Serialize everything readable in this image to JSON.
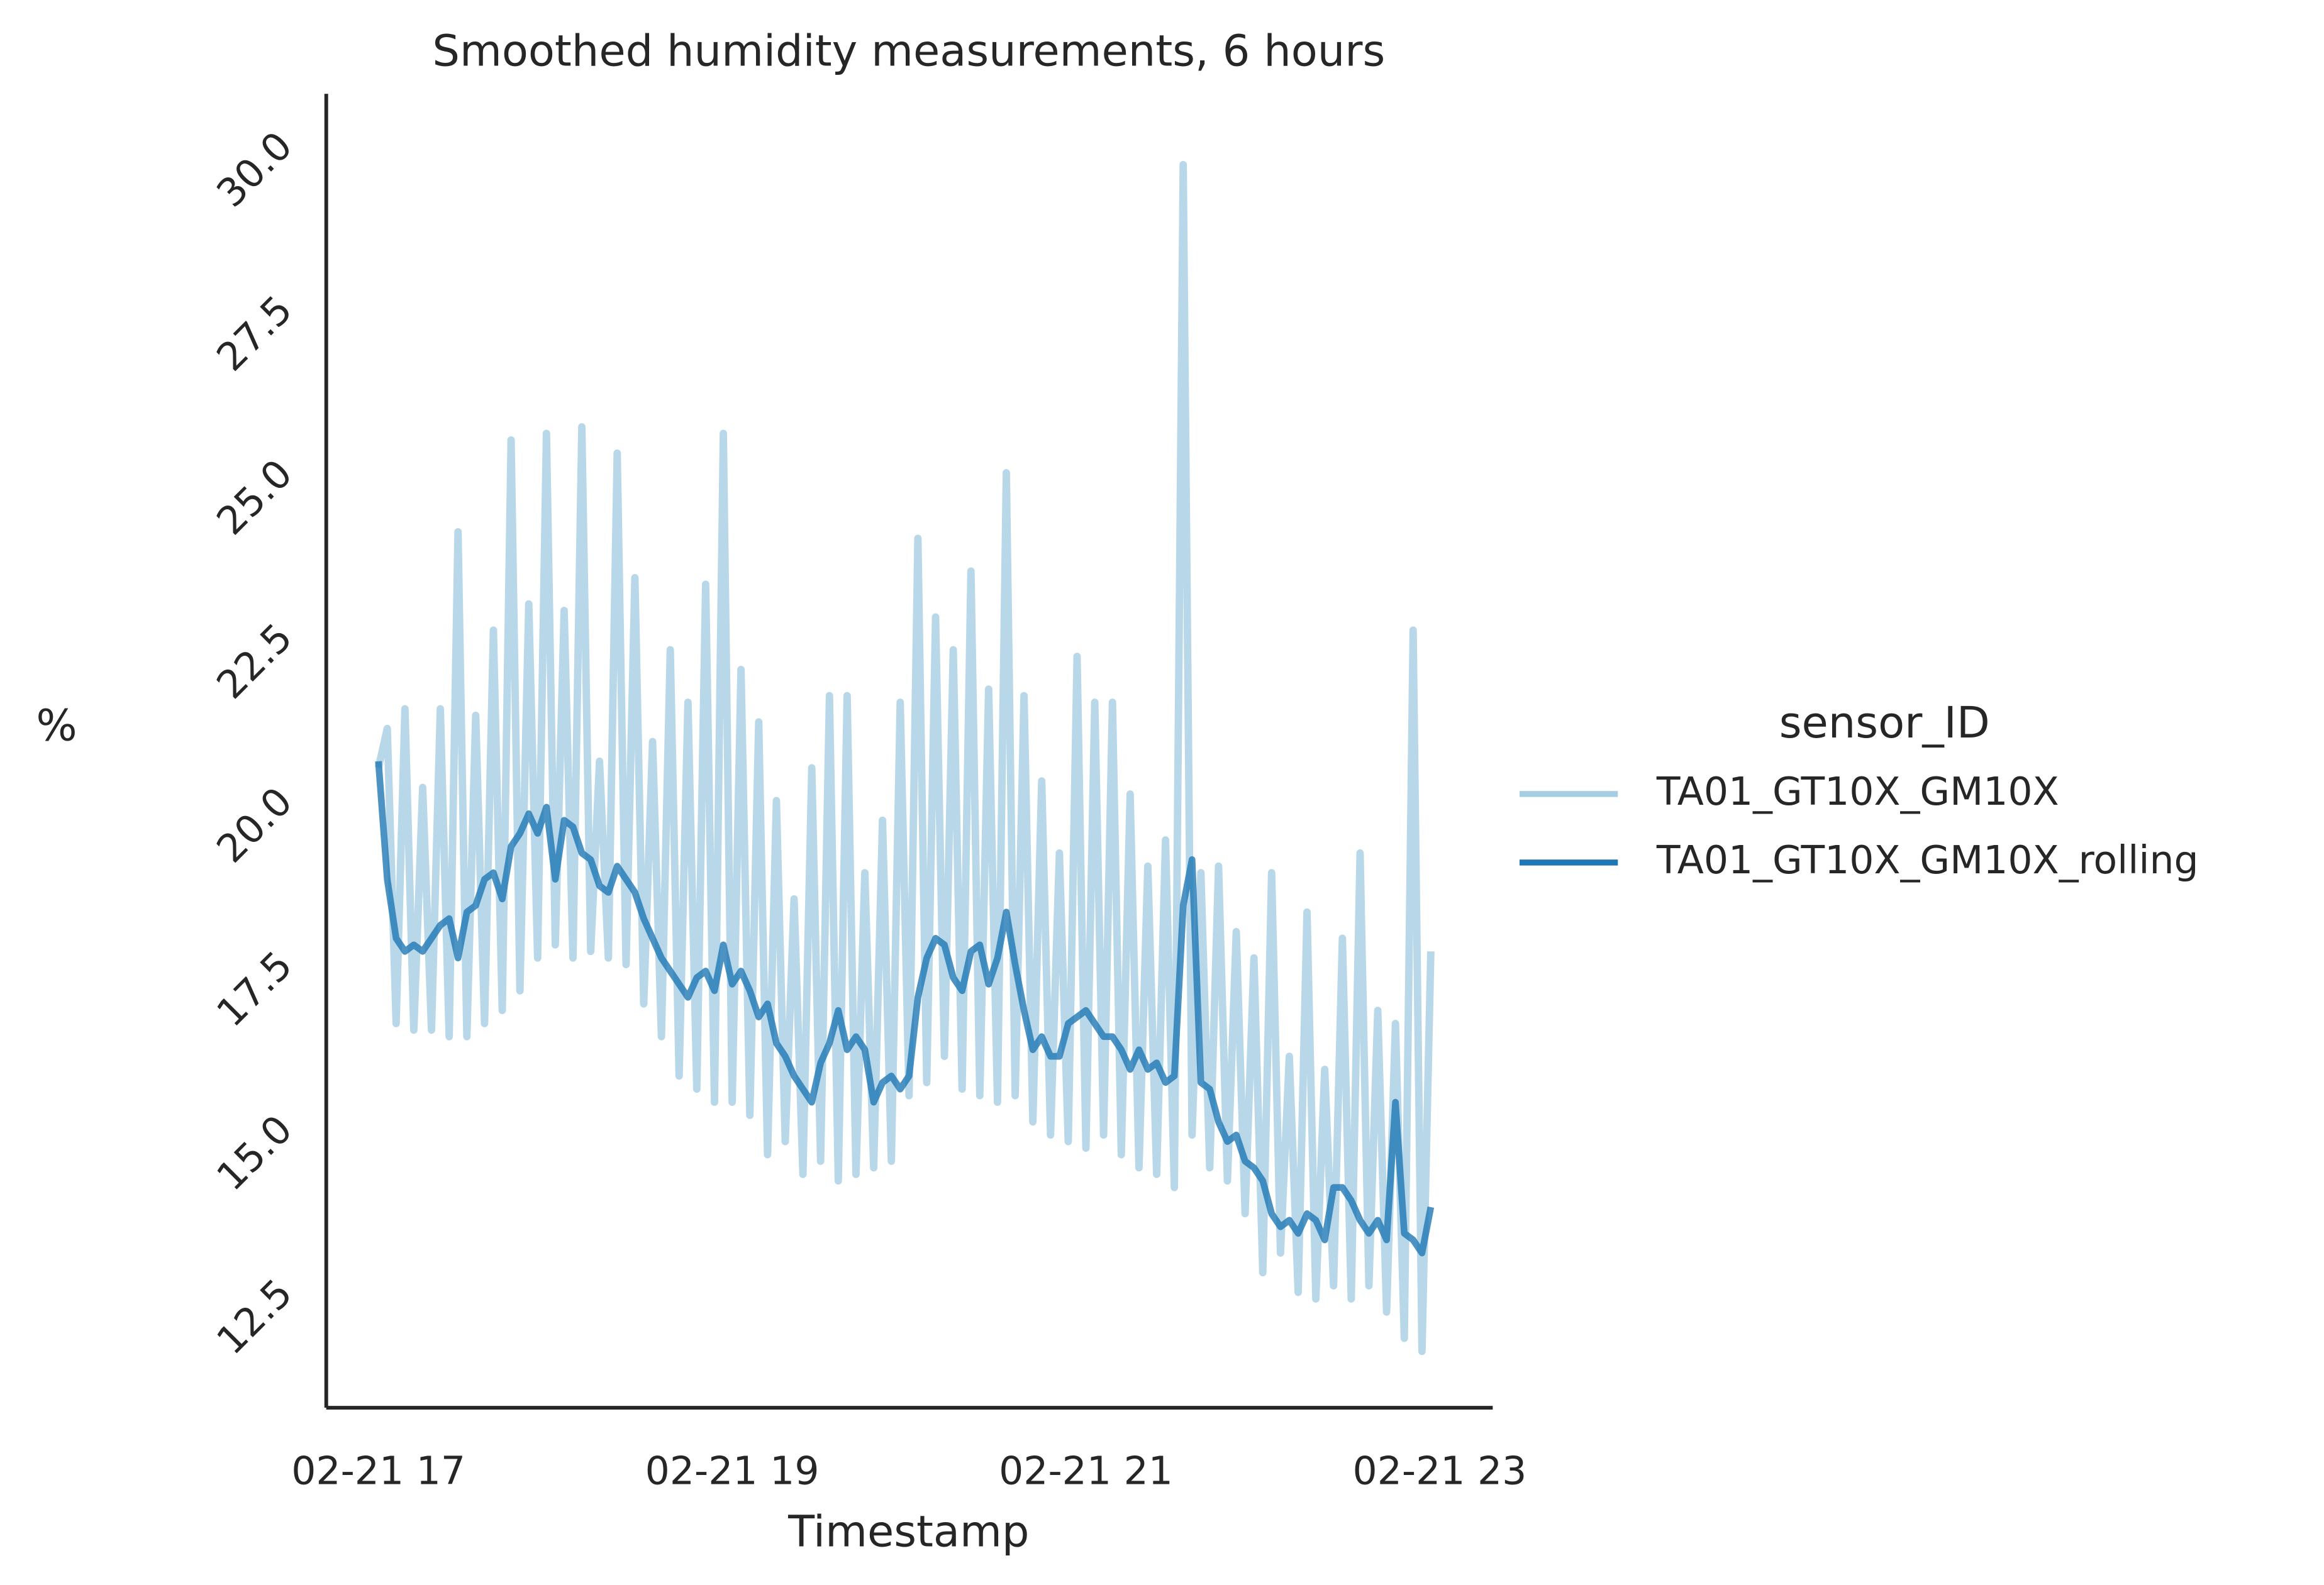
{
  "chart_data": {
    "type": "line",
    "title": "Smoothed humidity measurements, 6 hours",
    "x_label": "Timestamp",
    "y_label": "%",
    "legend_title": "sensor_ID",
    "legend_position": "right",
    "grid": false,
    "x": [
      17.0,
      17.05,
      17.1,
      17.15,
      17.2,
      17.25,
      17.3,
      17.35,
      17.4,
      17.45,
      17.5,
      17.55,
      17.6,
      17.65,
      17.7,
      17.75,
      17.8,
      17.85,
      17.9,
      17.95,
      18.0,
      18.05,
      18.1,
      18.15,
      18.2,
      18.25,
      18.3,
      18.35,
      18.4,
      18.45,
      18.5,
      18.55,
      18.6,
      18.65,
      18.7,
      18.75,
      18.8,
      18.85,
      18.9,
      18.95,
      19.0,
      19.05,
      19.1,
      19.15,
      19.2,
      19.25,
      19.3,
      19.35,
      19.4,
      19.45,
      19.5,
      19.55,
      19.6,
      19.65,
      19.7,
      19.75,
      19.8,
      19.85,
      19.9,
      19.95,
      20.0,
      20.05,
      20.1,
      20.15,
      20.2,
      20.25,
      20.3,
      20.35,
      20.4,
      20.45,
      20.5,
      20.55,
      20.6,
      20.65,
      20.7,
      20.75,
      20.8,
      20.85,
      20.9,
      20.95,
      21.0,
      21.05,
      21.1,
      21.15,
      21.2,
      21.25,
      21.3,
      21.35,
      21.4,
      21.45,
      21.5,
      21.55,
      21.6,
      21.65,
      21.7,
      21.75,
      21.8,
      21.85,
      21.9,
      21.95,
      22.0,
      22.05,
      22.1,
      22.15,
      22.2,
      22.25,
      22.3,
      22.35,
      22.4,
      22.45,
      22.5,
      22.55,
      22.6,
      22.65,
      22.7,
      22.75,
      22.8,
      22.85,
      22.9,
      22.95
    ],
    "xlim": [
      16.705,
      23.3
    ],
    "xticks": [
      {
        "value": 17,
        "label": "02-21 17"
      },
      {
        "value": 19,
        "label": "02-21 19"
      },
      {
        "value": 21,
        "label": "02-21 21"
      },
      {
        "value": 23,
        "label": "02-21 23"
      }
    ],
    "ylim": [
      11.14,
      31.18
    ],
    "yticks": [
      12.5,
      {
        "value": 15,
        "label": "15.0"
      },
      17.5,
      {
        "value": 20,
        "label": "20.0"
      },
      22.5,
      {
        "value": 25,
        "label": "25.0"
      },
      27.5,
      {
        "value": 30,
        "label": "30.0"
      }
    ],
    "series": [
      {
        "name": "TA01_GT10X_GM10X",
        "color": "#a6cee3",
        "values": [
          20.9,
          21.5,
          17.0,
          21.8,
          16.9,
          20.6,
          16.9,
          21.8,
          16.8,
          24.5,
          16.8,
          21.7,
          17.0,
          23.0,
          17.2,
          25.9,
          17.5,
          23.4,
          18.0,
          26.0,
          18.2,
          23.3,
          18.0,
          26.1,
          18.1,
          21.0,
          18.0,
          25.7,
          17.9,
          23.8,
          17.3,
          21.3,
          16.8,
          22.7,
          16.2,
          21.9,
          16.0,
          23.7,
          15.8,
          26.0,
          15.8,
          22.4,
          15.6,
          21.6,
          15.0,
          20.4,
          15.2,
          18.9,
          14.7,
          20.9,
          14.9,
          22.0,
          14.6,
          22.0,
          14.7,
          19.3,
          14.8,
          20.1,
          14.9,
          21.9,
          15.9,
          24.4,
          16.1,
          23.2,
          16.5,
          22.7,
          16.0,
          23.9,
          15.9,
          22.1,
          15.8,
          25.4,
          15.9,
          22.0,
          15.5,
          20.7,
          15.3,
          19.6,
          15.2,
          22.6,
          15.1,
          21.9,
          15.3,
          21.9,
          15.0,
          20.5,
          14.8,
          19.4,
          14.7,
          19.8,
          14.5,
          30.1,
          15.3,
          19.3,
          14.8,
          19.4,
          14.6,
          18.4,
          14.1,
          18.0,
          13.2,
          19.3,
          13.5,
          16.5,
          12.9,
          18.7,
          12.8,
          16.3,
          13.0,
          18.3,
          12.8,
          19.6,
          13.0,
          17.2,
          12.6,
          17.0,
          12.2,
          23.0,
          12.0,
          18.1
        ]
      },
      {
        "name": "TA01_GT10X_GM10X_rolling",
        "color": "#1f78b4",
        "values": [
          21.0,
          19.2,
          18.3,
          18.1,
          18.2,
          18.1,
          18.3,
          18.5,
          18.6,
          18.0,
          18.7,
          18.8,
          19.2,
          19.3,
          18.9,
          19.7,
          19.9,
          20.2,
          19.9,
          20.3,
          19.2,
          20.1,
          20.0,
          19.6,
          19.5,
          19.1,
          19.0,
          19.4,
          19.2,
          19.0,
          18.6,
          18.3,
          18.0,
          17.8,
          17.6,
          17.4,
          17.7,
          17.8,
          17.5,
          18.2,
          17.6,
          17.8,
          17.5,
          17.1,
          17.3,
          16.7,
          16.5,
          16.2,
          16.0,
          15.8,
          16.4,
          16.7,
          17.2,
          16.6,
          16.8,
          16.6,
          15.8,
          16.1,
          16.2,
          16.0,
          16.2,
          17.4,
          18.0,
          18.3,
          18.2,
          17.7,
          17.5,
          18.1,
          18.2,
          17.6,
          18.0,
          18.7,
          17.9,
          17.2,
          16.6,
          16.8,
          16.5,
          16.5,
          17.0,
          17.1,
          17.2,
          17.0,
          16.8,
          16.8,
          16.6,
          16.3,
          16.6,
          16.3,
          16.4,
          16.1,
          16.2,
          18.8,
          19.5,
          16.1,
          16.0,
          15.5,
          15.2,
          15.3,
          14.9,
          14.8,
          14.6,
          14.1,
          13.9,
          14.0,
          13.8,
          14.1,
          14.0,
          13.7,
          14.5,
          14.5,
          14.3,
          14.0,
          13.8,
          14.0,
          13.7,
          15.8,
          13.8,
          13.7,
          13.5,
          14.2
        ]
      }
    ]
  }
}
